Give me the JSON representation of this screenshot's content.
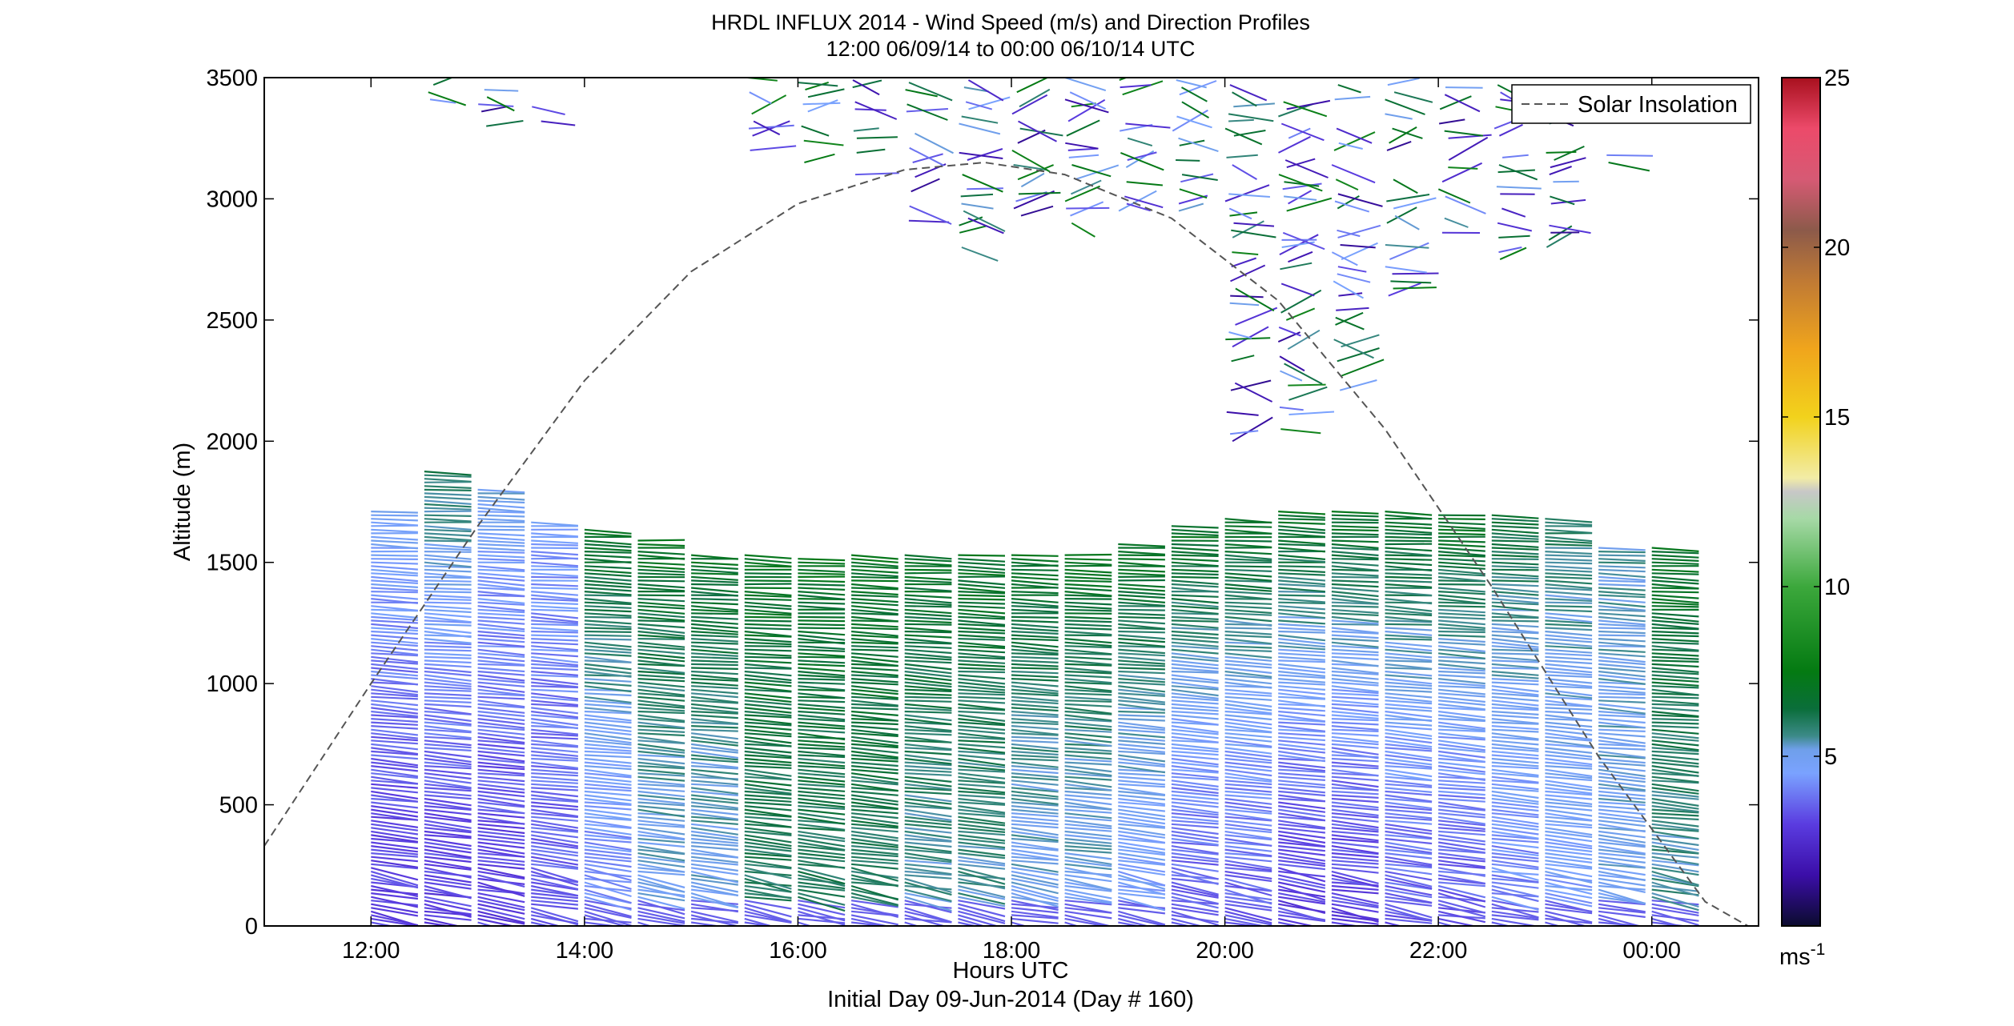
{
  "chart_data": {
    "type": "wind-barb-profile",
    "title": "HRDL INFLUX 2014 - Wind Speed (m/s) and Direction Profiles",
    "subtitle": "12:00 06/09/14 to 00:00 06/10/14  UTC",
    "xlabel": "Hours UTC",
    "xlabel2": "Initial Day 09-Jun-2014 (Day # 160)",
    "ylabel": "Altitude (m)",
    "xlim": [
      11.0,
      25.0
    ],
    "ylim": [
      0,
      3500
    ],
    "x_ticks": [
      {
        "value": 12,
        "label": "12:00"
      },
      {
        "value": 14,
        "label": "14:00"
      },
      {
        "value": 16,
        "label": "16:00"
      },
      {
        "value": 18,
        "label": "18:00"
      },
      {
        "value": 20,
        "label": "20:00"
      },
      {
        "value": 22,
        "label": "22:00"
      },
      {
        "value": 24,
        "label": "00:00"
      }
    ],
    "y_ticks": [
      {
        "value": 0,
        "label": "0"
      },
      {
        "value": 500,
        "label": "500"
      },
      {
        "value": 1000,
        "label": "1000"
      },
      {
        "value": 1500,
        "label": "1500"
      },
      {
        "value": 2000,
        "label": "2000"
      },
      {
        "value": 2500,
        "label": "2500"
      },
      {
        "value": 3000,
        "label": "3000"
      },
      {
        "value": 3500,
        "label": "3500"
      }
    ],
    "colorbar": {
      "min": 0,
      "max": 25,
      "unit": "ms",
      "unit_sup": "-1",
      "ticks": [
        {
          "value": 5,
          "label": "5"
        },
        {
          "value": 10,
          "label": "10"
        },
        {
          "value": 15,
          "label": "15"
        },
        {
          "value": 20,
          "label": "20"
        },
        {
          "value": 25,
          "label": "25"
        }
      ],
      "stops": [
        {
          "v": 0,
          "color": "#0b0b2e"
        },
        {
          "v": 1.5,
          "color": "#3b0ea8"
        },
        {
          "v": 3,
          "color": "#5a3ce0"
        },
        {
          "v": 4.5,
          "color": "#7aa2ff"
        },
        {
          "v": 5.2,
          "color": "#6f9fea"
        },
        {
          "v": 5.6,
          "color": "#3c8a88"
        },
        {
          "v": 6.4,
          "color": "#0a6e3a"
        },
        {
          "v": 7.5,
          "color": "#047a12"
        },
        {
          "v": 10,
          "color": "#3ca83c"
        },
        {
          "v": 12,
          "color": "#a6d9a6"
        },
        {
          "v": 12.8,
          "color": "#c7c7c7"
        },
        {
          "v": 13.2,
          "color": "#f2eca6"
        },
        {
          "v": 15,
          "color": "#f2d21c"
        },
        {
          "v": 17,
          "color": "#f0a51c"
        },
        {
          "v": 19,
          "color": "#c07a34"
        },
        {
          "v": 20.5,
          "color": "#8c5a4a"
        },
        {
          "v": 22,
          "color": "#d65a74"
        },
        {
          "v": 23.5,
          "color": "#ec4a6a"
        },
        {
          "v": 25,
          "color": "#a8101e"
        }
      ]
    },
    "legend": {
      "label": "Solar Insolation",
      "placement": "top-right"
    },
    "solar_insolation": {
      "style": "dashed",
      "color": "#555555",
      "points": [
        [
          11.0,
          330
        ],
        [
          12.0,
          1000
        ],
        [
          13.0,
          1650
        ],
        [
          14.0,
          2250
        ],
        [
          15.0,
          2700
        ],
        [
          16.0,
          2980
        ],
        [
          17.0,
          3120
        ],
        [
          17.75,
          3150
        ],
        [
          18.5,
          3100
        ],
        [
          19.5,
          2920
        ],
        [
          20.5,
          2580
        ],
        [
          21.5,
          2050
        ],
        [
          22.5,
          1400
        ],
        [
          23.5,
          700
        ],
        [
          24.5,
          100
        ],
        [
          24.9,
          0
        ]
      ]
    },
    "profiles": {
      "start_hour": 12.0,
      "interval_hours": 0.5,
      "count": 25,
      "boundary_layer_top_m": [
        1720,
        1880,
        1800,
        1670,
        1640,
        1600,
        1540,
        1530,
        1520,
        1540,
        1540,
        1540,
        1540,
        1540,
        1580,
        1650,
        1680,
        1720,
        1720,
        1720,
        1700,
        1700,
        1690,
        1570,
        1560
      ],
      "lower_speed_ms": [
        3,
        3,
        3,
        3.5,
        4,
        5,
        5,
        6,
        6,
        6,
        5.5,
        5.5,
        5,
        5,
        4.5,
        3.5,
        3.5,
        3,
        3,
        3.5,
        3.5,
        4,
        4.5,
        5,
        5.5
      ],
      "upper_speed_ms": [
        5,
        6,
        5,
        4.5,
        7,
        7,
        7,
        7,
        7,
        7,
        7,
        7,
        7,
        7,
        7,
        7,
        7,
        7,
        7,
        7,
        7,
        6.5,
        6,
        5.5,
        7
      ],
      "aloft_top_m": [
        0,
        3500,
        3500,
        3400,
        0,
        0,
        0,
        3500,
        3500,
        3500,
        3500,
        3500,
        3500,
        3500,
        3500,
        3500,
        3500,
        3500,
        3500,
        3500,
        3500,
        3500,
        3500,
        3200,
        0
      ],
      "aloft_bottom_m": [
        0,
        3350,
        3300,
        3200,
        0,
        0,
        0,
        3200,
        3150,
        3100,
        2850,
        2800,
        2900,
        2900,
        2950,
        2950,
        2000,
        2050,
        2150,
        2600,
        2800,
        2750,
        2800,
        3150,
        0
      ]
    }
  }
}
